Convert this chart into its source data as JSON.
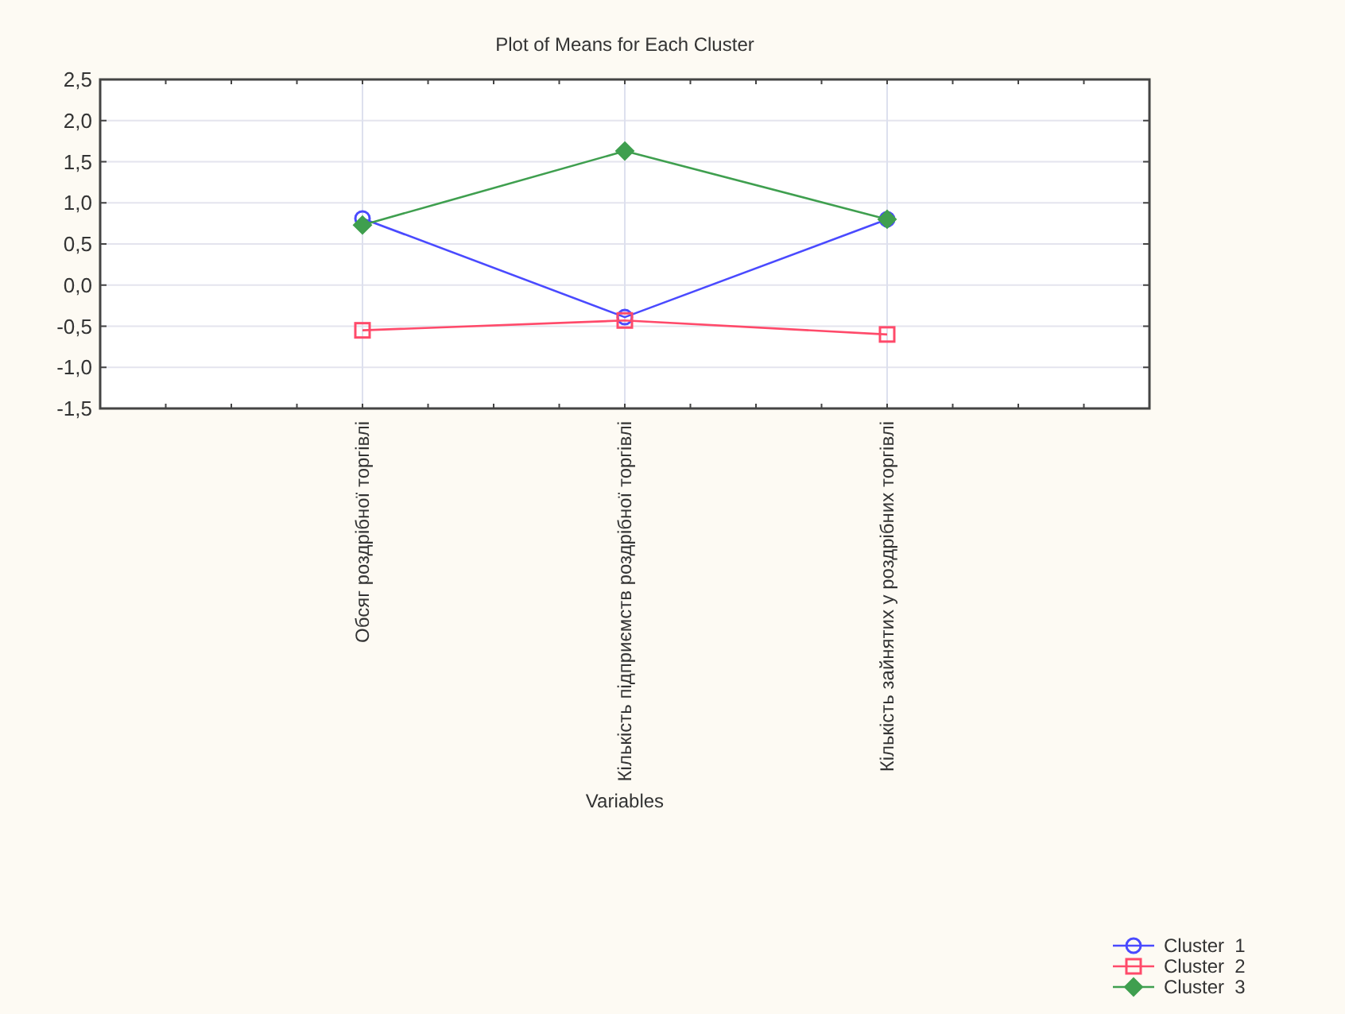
{
  "chart_data": {
    "type": "line",
    "title": "Plot of Means for Each Cluster",
    "xlabel": "Variables",
    "categories": [
      "Обсяг роздрібної торгівлі",
      "Кількість підприємств роздрібної торгівлі",
      "Кількість зайнятих у роздрібних торгівлі"
    ],
    "series": [
      {
        "name": "Cluster  1",
        "color": "#4a4aff",
        "marker": "circle",
        "values": [
          0.81,
          -0.39,
          0.8
        ]
      },
      {
        "name": "Cluster  2",
        "color": "#ff4a6a",
        "marker": "square",
        "values": [
          -0.55,
          -0.43,
          -0.6
        ]
      },
      {
        "name": "Cluster  3",
        "color": "#3f9f4f",
        "marker": "diamond",
        "values": [
          0.73,
          1.63,
          0.8
        ]
      }
    ],
    "ylim": [
      -1.5,
      2.5
    ],
    "yticks": [
      {
        "value": -1.5,
        "label": "-1,5"
      },
      {
        "value": -1,
        "label": "-1,0"
      },
      {
        "value": -0.5,
        "label": "-0,5"
      },
      {
        "value": 0,
        "label": "0,0"
      },
      {
        "value": 0.5,
        "label": "0,5"
      },
      {
        "value": 1,
        "label": "1,0"
      },
      {
        "value": 1.5,
        "label": "1,5"
      },
      {
        "value": 2,
        "label": "2,0"
      },
      {
        "value": 2.5,
        "label": "2,5"
      }
    ],
    "grid": true,
    "legend": "bottom right",
    "line_style": "solid"
  }
}
